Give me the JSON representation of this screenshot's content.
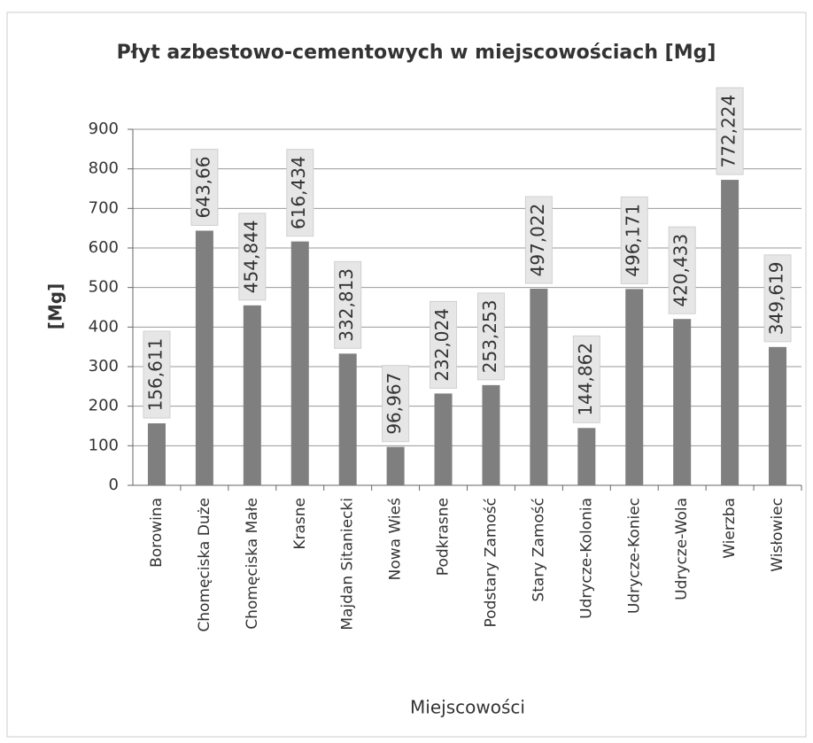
{
  "chart_data": {
    "type": "bar",
    "title": "Płyt azbestowo-cementowych w miejscowościach [Mg]",
    "x_label": "Miejscowości",
    "y_label": "[Mg]",
    "categories": [
      "Borowina",
      "Chomęciska Duże",
      "Chomęciska Małe",
      "Krasne",
      "Majdan Sitaniecki",
      "Nowa Wieś",
      "Podkrasne",
      "Podstary Zamość",
      "Stary Zamość",
      "Udrycze-Kolonia",
      "Udrycze-Koniec",
      "Udrycze-Wola",
      "Wierzba",
      "Wisłowiec"
    ],
    "values": [
      156.611,
      643.66,
      454.844,
      616.434,
      332.813,
      96.967,
      232.024,
      253.253,
      497.022,
      144.862,
      496.171,
      420.433,
      772.224,
      349.619
    ],
    "value_labels": [
      "156,611",
      "643,66",
      "454,844",
      "616,434",
      "332,813",
      "96,967",
      "232,024",
      "253,253",
      "497,022",
      "144,862",
      "496,171",
      "420,433",
      "772,224",
      "349,619"
    ],
    "color": "#7f7f7f",
    "ylim": [
      0,
      900
    ],
    "yticks": [
      0,
      100,
      200,
      300,
      400,
      500,
      600,
      700,
      800,
      900
    ],
    "grid": true
  }
}
